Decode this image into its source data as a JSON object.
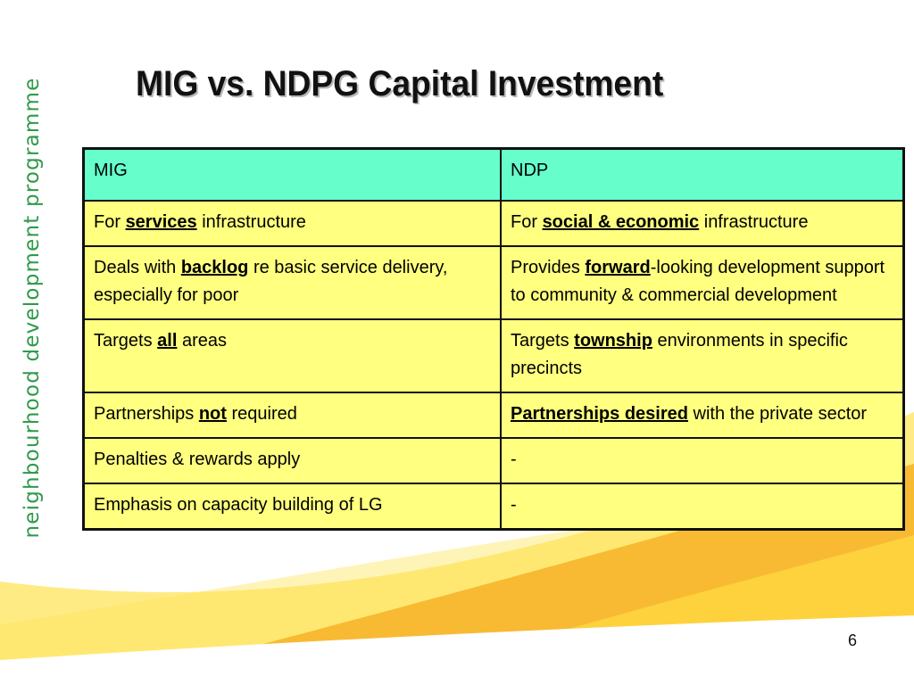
{
  "slide": {
    "title": "MIG vs. NDPG Capital Investment",
    "side_label": "neighbourhood development programme",
    "page_number": "6"
  },
  "colors": {
    "header_fill": "#66ffcc",
    "cell_fill": "#ffff80",
    "brand_green": "#2f9a4a",
    "swoosh_yellow": "#ffe45a",
    "swoosh_orange": "#f7b52c"
  },
  "table": {
    "headers": [
      "MIG",
      "NDP"
    ],
    "rows": [
      [
        [
          {
            "t": "For "
          },
          {
            "t": "services",
            "k": true
          },
          {
            "t": " infrastructure"
          }
        ],
        [
          {
            "t": "For "
          },
          {
            "t": "social & economic",
            "k": true
          },
          {
            "t": " infrastructure"
          }
        ]
      ],
      [
        [
          {
            "t": "Deals with "
          },
          {
            "t": "backlog",
            "k": true
          },
          {
            "t": " re basic service delivery, especially for poor"
          }
        ],
        [
          {
            "t": "Provides "
          },
          {
            "t": "forward",
            "k": true
          },
          {
            "t": "-looking development support to community & commercial development"
          }
        ]
      ],
      [
        [
          {
            "t": "Targets "
          },
          {
            "t": "all",
            "k": true
          },
          {
            "t": " areas"
          }
        ],
        [
          {
            "t": "Targets "
          },
          {
            "t": "township",
            "k": true
          },
          {
            "t": " environments  in specific precincts"
          }
        ]
      ],
      [
        [
          {
            "t": "Partnerships "
          },
          {
            "t": "not",
            "k": true
          },
          {
            "t": " required"
          }
        ],
        [
          {
            "t": "Partnerships desired",
            "k": true
          },
          {
            "t": " with the private sector"
          }
        ]
      ],
      [
        [
          {
            "t": "Penalties & rewards apply"
          }
        ],
        [
          {
            "t": "-"
          }
        ]
      ],
      [
        [
          {
            "t": "Emphasis on capacity building of LG"
          }
        ],
        [
          {
            "t": "-"
          }
        ]
      ]
    ]
  }
}
